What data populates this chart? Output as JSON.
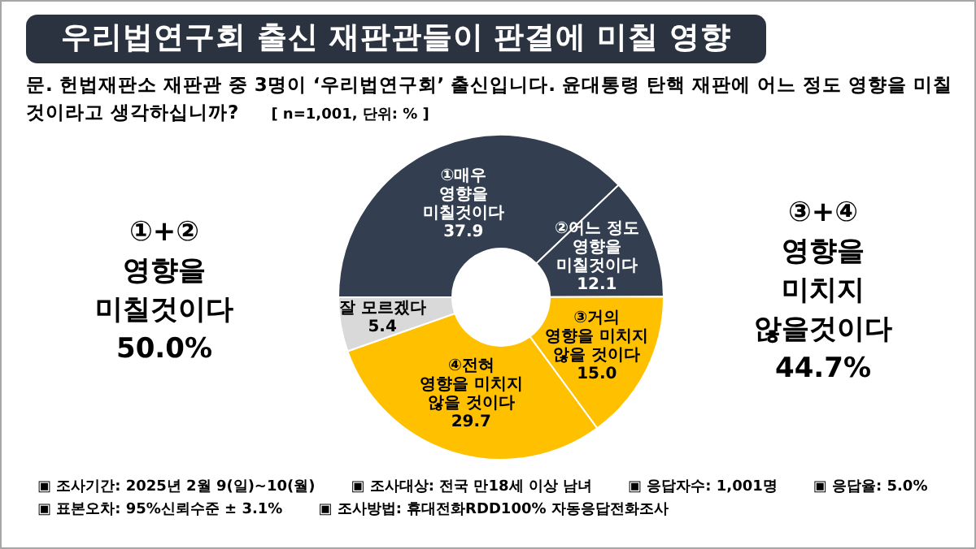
{
  "chart_data": {
    "type": "donut",
    "title": "우리법연구회 출신 재판관들이 판결에 미칠 영향",
    "subtitle": "문. 헌법재판소 재판관 중 3명이 ‘우리법연구회’ 출신입니다. 윤대통령 탄핵 재판에 어느 정도 영향을 미칠 것이라고 생각하십니까?",
    "categories": [
      "①매우\n영향을\n미칠것이다",
      "②어느 정도\n영향을\n미칠것이다",
      "③거의\n영향을 미치지\n않을 것이다",
      "④전혀\n영향을 미치지\n않을 것이다",
      "잘 모르겠다"
    ],
    "values": [
      37.9,
      12.1,
      15.0,
      29.7,
      5.4
    ],
    "colors": [
      "#333f50",
      "#333f50",
      "#ffc000",
      "#ffc000",
      "#d9d9d9"
    ],
    "value_labels": [
      "37.9",
      "12.1",
      "15.0",
      "29.7",
      "5.4"
    ],
    "annotations": [
      "①+②\n영향을\n미칠것이다\n50.0%",
      "③+④\n영향을\n미치지\n않을것이다\n44.7%",
      "[ n=1,001, 단위: % ]",
      "▣ 조사기간: 2025년 2월 9(일)~10(월)",
      "▣ 조사대상: 전국 만18세 이상 남녀",
      "▣ 응답자수: 1,001명",
      "▣ 응답율: 5.0%",
      "▣ 표본오차: 95%신뢰수준 ± 3.1%",
      "▣ 조사방법: 휴대전화RDD100% 자동응답전화조사"
    ]
  }
}
